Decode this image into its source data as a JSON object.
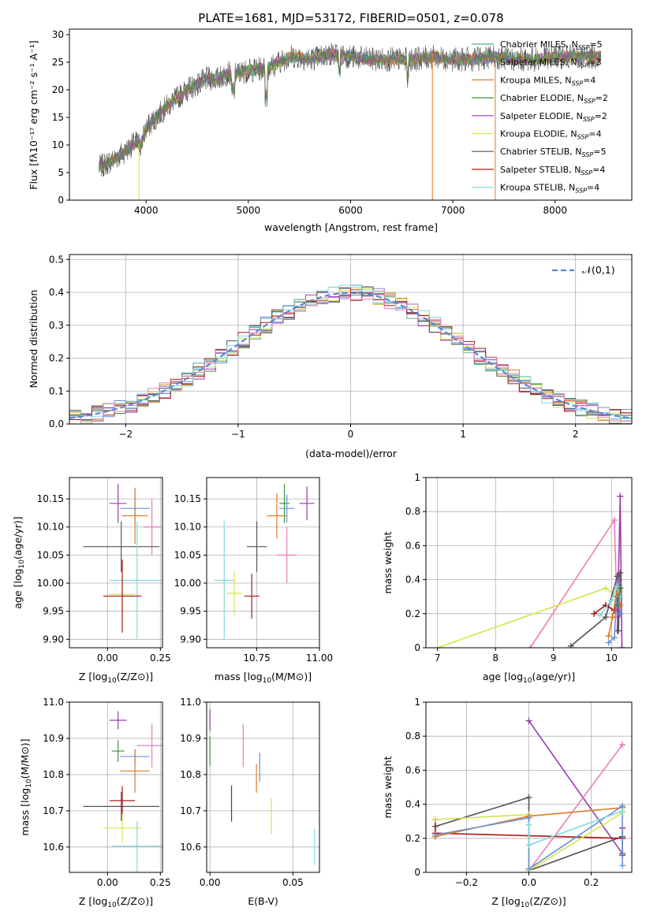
{
  "title": "PLATE=1681, MJD=53172, FIBERID=0501, z=0.078",
  "colors": {
    "chab_miles": "#5aa8a0",
    "salp_miles": "#6a92d6",
    "krou_miles": "#e07a24",
    "chab_elodie": "#3e8f3e",
    "salp_elodie": "#9a3ab0",
    "krou_elodie": "#d4e64a",
    "chab_stelib": "#555555",
    "salp_stelib": "#a81a1a",
    "krou_stelib": "#7fd8e0",
    "pink": "#e67fb8",
    "gauss": "#5588d8"
  },
  "chart_data": [
    {
      "id": "spectrum",
      "type": "line",
      "xlabel": "wavelength [Angstrom, rest frame]",
      "ylabel": "Flux [f$_{\\lambda}$10$^{-17}$ erg cm$^{-2}$ s$^{-1}$ A$^{-1}$]",
      "ylabel_display": "Flux [fλ10⁻¹⁷ erg cm⁻² s⁻¹ A⁻¹]",
      "xlim": [
        3250,
        8750
      ],
      "ylim": [
        0,
        31
      ],
      "xticks": [
        4000,
        5000,
        6000,
        7000,
        8000
      ],
      "yticks": [
        0,
        5,
        10,
        15,
        20,
        25,
        30
      ],
      "legend_position": "upper right",
      "legend": [
        {
          "main": "Chabrier MILES, N",
          "sub": "SSP",
          "tail": "=5",
          "color_key": "chab_miles"
        },
        {
          "main": "Salpeter MILES, N",
          "sub": "SSP",
          "tail": "=3",
          "color_key": "salp_miles"
        },
        {
          "main": "Kroupa MILES, N",
          "sub": "SSP",
          "tail": "=4",
          "color_key": "krou_miles"
        },
        {
          "main": "Chabrier ELODIE, N",
          "sub": "SSP",
          "tail": "=2",
          "color_key": "chab_elodie"
        },
        {
          "main": "Salpeter ELODIE, N",
          "sub": "SSP",
          "tail": "=2",
          "color_key": "salp_elodie"
        },
        {
          "main": "Kroupa ELODIE, N",
          "sub": "SSP",
          "tail": "=4",
          "color_key": "krou_elodie"
        },
        {
          "main": "Chabrier STELIB, N",
          "sub": "SSP",
          "tail": "=5",
          "color_key": "chab_stelib"
        },
        {
          "main": "Salpeter STELIB, N",
          "sub": "SSP",
          "tail": "=4",
          "color_key": "salp_stelib"
        },
        {
          "main": "Kroupa STELIB, N",
          "sub": "SSP",
          "tail": "=4",
          "color_key": "krou_stelib"
        }
      ],
      "continuum": [
        [
          3530,
          0
        ],
        [
          3540,
          6
        ],
        [
          3600,
          6.5
        ],
        [
          3700,
          7.5
        ],
        [
          3800,
          9
        ],
        [
          3900,
          10.5
        ],
        [
          3950,
          10
        ],
        [
          4000,
          13
        ],
        [
          4100,
          15
        ],
        [
          4200,
          17
        ],
        [
          4300,
          18.5
        ],
        [
          4400,
          20
        ],
        [
          4500,
          21
        ],
        [
          4600,
          22
        ],
        [
          4700,
          22
        ],
        [
          4800,
          23
        ],
        [
          4900,
          23
        ],
        [
          5000,
          23.5
        ],
        [
          5200,
          24
        ],
        [
          5400,
          26
        ],
        [
          5500,
          26
        ],
        [
          5600,
          25.5
        ],
        [
          5800,
          26.5
        ],
        [
          6000,
          26
        ],
        [
          6200,
          25.5
        ],
        [
          6400,
          25.5
        ],
        [
          6600,
          25.5
        ],
        [
          6800,
          26
        ],
        [
          7000,
          25.5
        ],
        [
          7200,
          25.5
        ],
        [
          7400,
          26
        ],
        [
          7600,
          25.5
        ],
        [
          7800,
          25.5
        ],
        [
          8000,
          26
        ],
        [
          8200,
          26
        ],
        [
          8400,
          26
        ],
        [
          8450,
          26
        ]
      ],
      "vertical_drops": [
        {
          "x": 3530,
          "color_key": "chab_miles"
        },
        {
          "x": 3930,
          "color_key": "krou_elodie"
        },
        {
          "x": 6800,
          "color_key": "krou_miles"
        },
        {
          "x": 7415,
          "color_key": "krou_miles"
        }
      ]
    },
    {
      "id": "residuals",
      "type": "histogram",
      "xlabel": "(data-model)/error",
      "ylabel": "Normed distribution",
      "xlim": [
        -2.5,
        2.5
      ],
      "ylim": [
        0,
        0.515
      ],
      "xticks": [
        -2,
        -1,
        0,
        1,
        2
      ],
      "yticks": [
        0.0,
        0.1,
        0.2,
        0.3,
        0.4,
        0.5
      ],
      "grid": true,
      "legend_position": "upper right",
      "legend": [
        {
          "label": "𝒩(0,1)",
          "color_key": "gauss"
        }
      ],
      "bin_width": 0.1
    },
    {
      "id": "age_vs_Z",
      "type": "errorbar",
      "xlabel": "Z [log$_{10}$(Z/Z$_\\odot$)]",
      "ylabel": "age  [log$_{10}$(age/yr)]",
      "xlim": [
        -0.18,
        0.26
      ],
      "ylim": [
        9.885,
        10.188
      ],
      "xticks": [
        0.0,
        0.25
      ],
      "xticklabels": [
        "0.00",
        "0.25"
      ],
      "yticks": [
        9.9,
        9.95,
        10.0,
        10.05,
        10.1,
        10.15
      ],
      "yticklabels": [
        "9.90",
        "9.95",
        "10.00",
        "10.05",
        "10.10",
        "10.15"
      ],
      "grid": true,
      "points": [
        {
          "color_key": "salp_elodie",
          "x": 0.05,
          "xerr": 0.04,
          "y": 10.142,
          "yerr": 0.035
        },
        {
          "color_key": "salp_miles",
          "x": 0.13,
          "xerr": 0.07,
          "y": 10.133,
          "yerr": 0.03
        },
        {
          "color_key": "krou_miles",
          "x": 0.13,
          "xerr": 0.06,
          "y": 10.12,
          "yerr": 0.05
        },
        {
          "color_key": "pink",
          "x": 0.21,
          "xerr": 0.04,
          "y": 10.1,
          "yerr": 0.05
        },
        {
          "color_key": "chab_stelib",
          "x": 0.065,
          "xerr": 0.18,
          "y": 10.065,
          "yerr": 0.045
        },
        {
          "color_key": "krou_stelib",
          "x": 0.14,
          "xerr": 0.13,
          "y": 10.005,
          "yerr": 0.105
        },
        {
          "color_key": "krou_elodie",
          "x": 0.07,
          "xerr": 0.06,
          "y": 9.98,
          "yerr": 0.03
        },
        {
          "color_key": "salp_stelib",
          "x": 0.07,
          "xerr": 0.09,
          "y": 9.977,
          "yerr": 0.065
        }
      ]
    },
    {
      "id": "age_vs_mass",
      "type": "errorbar",
      "xlabel": "mass [log$_{10}$(M/M$_\\odot$)]",
      "ylabel": "",
      "xlim": [
        10.55,
        11.0
      ],
      "ylim": [
        9.885,
        10.188
      ],
      "xticks": [
        10.75,
        11.0
      ],
      "xticklabels": [
        "10.75",
        "11.00"
      ],
      "yticks": [
        9.9,
        9.95,
        10.0,
        10.05,
        10.1,
        10.15
      ],
      "yticklabels": [
        "9.90",
        "9.95",
        "10.00",
        "10.05",
        "10.10",
        "10.15"
      ],
      "grid": true,
      "points": [
        {
          "color_key": "chab_elodie",
          "x": 10.86,
          "xerr": 0.02,
          "y": 10.142,
          "yerr": 0.035
        },
        {
          "color_key": "salp_elodie",
          "x": 10.95,
          "xerr": 0.03,
          "y": 10.142,
          "yerr": 0.03
        },
        {
          "color_key": "salp_miles",
          "x": 10.87,
          "xerr": 0.03,
          "y": 10.133,
          "yerr": 0.025
        },
        {
          "color_key": "krou_miles",
          "x": 10.83,
          "xerr": 0.04,
          "y": 10.12,
          "yerr": 0.04
        },
        {
          "color_key": "chab_stelib",
          "x": 10.75,
          "xerr": 0.04,
          "y": 10.065,
          "yerr": 0.045
        },
        {
          "color_key": "pink",
          "x": 10.87,
          "xerr": 0.04,
          "y": 10.05,
          "yerr": 0.05
        },
        {
          "color_key": "krou_stelib",
          "x": 10.62,
          "xerr": 0.04,
          "y": 10.005,
          "yerr": 0.105
        },
        {
          "color_key": "krou_elodie",
          "x": 10.66,
          "xerr": 0.03,
          "y": 9.982,
          "yerr": 0.04
        },
        {
          "color_key": "salp_stelib",
          "x": 10.73,
          "xerr": 0.03,
          "y": 9.977,
          "yerr": 0.04
        }
      ]
    },
    {
      "id": "weight_vs_age",
      "type": "line",
      "xlabel": "age  [log$_{10}$(age/yr)]",
      "ylabel": "mass weight",
      "xlim": [
        6.8,
        10.35
      ],
      "ylim": [
        0,
        1
      ],
      "xticks": [
        7,
        8,
        9,
        10
      ],
      "yticks": [
        0.0,
        0.2,
        0.4,
        0.6,
        0.8,
        1.0
      ],
      "grid": true,
      "series": [
        {
          "color_key": "pink",
          "points": [
            [
              8.6,
              0
            ],
            [
              10.05,
              0.75
            ],
            [
              10.1,
              0.18
            ]
          ]
        },
        {
          "color_key": "krou_elodie",
          "points": [
            [
              7.0,
              0
            ],
            [
              9.9,
              0.35
            ],
            [
              10.1,
              0.3
            ],
            [
              10.15,
              0.33
            ]
          ]
        },
        {
          "color_key": "salp_elodie",
          "points": [
            [
              10.1,
              0.1
            ],
            [
              10.15,
              0.89
            ],
            [
              10.18,
              0.0
            ]
          ]
        },
        {
          "color_key": "chab_stelib",
          "points": [
            [
              9.3,
              0.01
            ],
            [
              9.9,
              0.18
            ],
            [
              10.1,
              0.42
            ],
            [
              10.15,
              0.44
            ],
            [
              10.12,
              0.1
            ]
          ]
        },
        {
          "color_key": "salp_stelib",
          "points": [
            [
              9.7,
              0.2
            ],
            [
              9.9,
              0.25
            ],
            [
              10.05,
              0.22
            ],
            [
              10.15,
              0.35
            ],
            [
              10.1,
              0.3
            ]
          ]
        },
        {
          "color_key": "salp_miles",
          "points": [
            [
              9.95,
              0.03
            ],
            [
              10.05,
              0.06
            ],
            [
              10.1,
              0.38
            ],
            [
              10.15,
              0.2
            ]
          ]
        },
        {
          "color_key": "krou_miles",
          "points": [
            [
              9.95,
              0.07
            ],
            [
              10.02,
              0.18
            ],
            [
              10.1,
              0.35
            ],
            [
              10.15,
              0.25
            ]
          ]
        },
        {
          "color_key": "krou_stelib",
          "points": [
            [
              9.8,
              0.19
            ],
            [
              10.0,
              0.28
            ],
            [
              10.1,
              0.36
            ],
            [
              10.15,
              0.3
            ]
          ]
        },
        {
          "color_key": "chab_elodie",
          "points": [
            [
              10.1,
              0.25
            ],
            [
              10.15,
              0.35
            ]
          ]
        }
      ]
    },
    {
      "id": "mass_vs_Z",
      "type": "errorbar",
      "xlabel": "Z [log$_{10}$(Z/Z$_\\odot$)]",
      "ylabel": "mass [log$_{10}$(M/M$_\\odot$)]",
      "xlim": [
        -0.18,
        0.26
      ],
      "ylim": [
        10.53,
        11.0
      ],
      "xticks": [
        0.0,
        0.25
      ],
      "xticklabels": [
        "0.00",
        "0.25"
      ],
      "yticks": [
        10.6,
        10.7,
        10.8,
        10.9,
        11.0
      ],
      "yticklabels": [
        "10.6",
        "10.7",
        "10.8",
        "10.9",
        "11.0"
      ],
      "grid": true,
      "points": [
        {
          "color_key": "salp_elodie",
          "x": 0.05,
          "xerr": 0.04,
          "y": 10.95,
          "yerr": 0.025
        },
        {
          "color_key": "chab_elodie",
          "x": 0.05,
          "xerr": 0.03,
          "y": 10.865,
          "yerr": 0.03
        },
        {
          "color_key": "pink",
          "x": 0.21,
          "xerr": 0.07,
          "y": 10.88,
          "yerr": 0.06
        },
        {
          "color_key": "salp_miles",
          "x": 0.13,
          "xerr": 0.07,
          "y": 10.85,
          "yerr": 0.02
        },
        {
          "color_key": "krou_miles",
          "x": 0.13,
          "xerr": 0.07,
          "y": 10.81,
          "yerr": 0.06
        },
        {
          "color_key": "chab_stelib",
          "x": 0.065,
          "xerr": 0.18,
          "y": 10.712,
          "yerr": 0.04
        },
        {
          "color_key": "salp_stelib",
          "x": 0.07,
          "xerr": 0.06,
          "y": 10.728,
          "yerr": 0.04
        },
        {
          "color_key": "krou_elodie",
          "x": 0.07,
          "xerr": 0.09,
          "y": 10.652,
          "yerr": 0.04
        },
        {
          "color_key": "krou_stelib",
          "x": 0.14,
          "xerr": 0.12,
          "y": 10.602,
          "yerr": 0.07
        }
      ]
    },
    {
      "id": "mass_vs_ebv",
      "type": "errorbar",
      "xlabel": "E(B-V)",
      "ylabel": "",
      "xlim": [
        -0.002,
        0.066
      ],
      "ylim": [
        10.53,
        11.0
      ],
      "xticks": [
        0.0,
        0.05
      ],
      "xticklabels": [
        "0.00",
        "0.05"
      ],
      "yticks": [
        10.6,
        10.7,
        10.8,
        10.9,
        11.0
      ],
      "yticklabels": [
        "10.6",
        "10.7",
        "10.8",
        "10.9",
        "11.0"
      ],
      "grid": true,
      "points": [
        {
          "color_key": "salp_elodie",
          "x": 0.0,
          "xerr": 0.0,
          "y": 10.95,
          "yerr": 0.03
        },
        {
          "color_key": "chab_elodie",
          "x": 0.0,
          "xerr": 0.0,
          "y": 10.865,
          "yerr": 0.04
        },
        {
          "color_key": "pink",
          "x": 0.02,
          "xerr": 0.0,
          "y": 10.88,
          "yerr": 0.06
        },
        {
          "color_key": "salp_miles",
          "x": 0.03,
          "xerr": 0.0,
          "y": 10.82,
          "yerr": 0.04
        },
        {
          "color_key": "krou_miles",
          "x": 0.028,
          "xerr": 0.0,
          "y": 10.79,
          "yerr": 0.04
        },
        {
          "color_key": "salp_stelib",
          "x": 0.013,
          "xerr": 0.0,
          "y": 10.72,
          "yerr": 0.05
        },
        {
          "color_key": "krou_elodie",
          "x": 0.037,
          "xerr": 0.0,
          "y": 10.685,
          "yerr": 0.05
        },
        {
          "color_key": "krou_stelib",
          "x": 0.063,
          "xerr": 0.0,
          "y": 10.6,
          "yerr": 0.05
        }
      ]
    },
    {
      "id": "weight_vs_Z",
      "type": "line",
      "xlabel": "Z [log$_{10}$(Z/Z$_\\odot$)]",
      "ylabel": "mass weight",
      "xlim": [
        -0.33,
        0.33
      ],
      "ylim": [
        0,
        1
      ],
      "xticks": [
        -0.2,
        0.0,
        0.2
      ],
      "xticklabels": [
        "−0.2",
        "0.0",
        "0.2"
      ],
      "yticks": [
        0.0,
        0.2,
        0.4,
        0.6,
        0.8,
        1.0
      ],
      "grid": true,
      "series": [
        {
          "color_key": "salp_elodie",
          "points": [
            [
              0.0,
              0.89
            ],
            [
              0.3,
              0.11
            ]
          ]
        },
        {
          "color_key": "pink",
          "points": [
            [
              0.0,
              0.01
            ],
            [
              0.3,
              0.75
            ]
          ]
        },
        {
          "color_key": "chab_stelib",
          "points": [
            [
              -0.3,
              0.27
            ],
            [
              0.0,
              0.44
            ],
            [
              0.0,
              0.01
            ],
            [
              0.3,
              0.21
            ],
            [
              0.3,
              0.1
            ]
          ]
        },
        {
          "color_key": "salp_stelib",
          "points": [
            [
              -0.3,
              0.31
            ],
            [
              -0.3,
              0.23
            ],
            [
              0.3,
              0.2
            ],
            [
              0.3,
              0.26
            ]
          ]
        },
        {
          "color_key": "krou_elodie",
          "points": [
            [
              -0.3,
              0.31
            ],
            [
              0.0,
              0.34
            ],
            [
              0.0,
              0.01
            ],
            [
              0.3,
              0.35
            ]
          ]
        },
        {
          "color_key": "krou_miles",
          "points": [
            [
              -0.3,
              0.21
            ],
            [
              0.0,
              0.33
            ],
            [
              0.3,
              0.38
            ]
          ]
        },
        {
          "color_key": "salp_miles",
          "points": [
            [
              -0.3,
              0.22
            ],
            [
              0.0,
              0.32
            ],
            [
              0.0,
              0.02
            ],
            [
              0.3,
              0.39
            ],
            [
              0.3,
              0.04
            ]
          ]
        },
        {
          "color_key": "krou_stelib",
          "points": [
            [
              0.0,
              0.28
            ],
            [
              0.0,
              0.16
            ],
            [
              0.3,
              0.36
            ]
          ]
        }
      ]
    }
  ]
}
